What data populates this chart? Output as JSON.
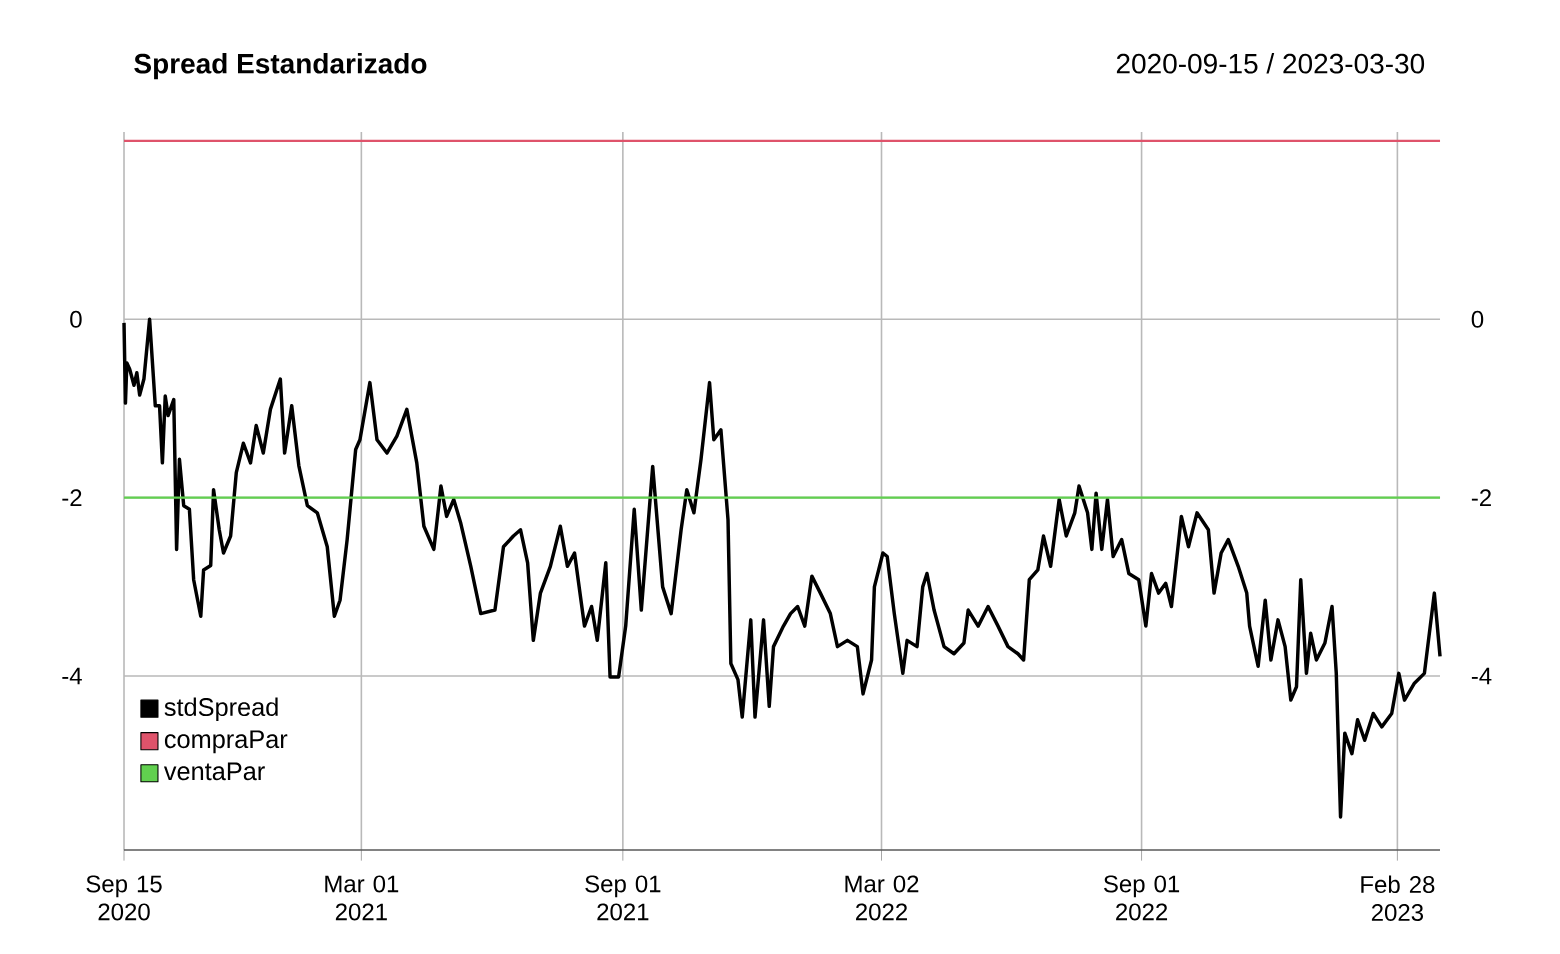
{
  "chart_data": {
    "type": "line",
    "title": "Spread Estandarizado",
    "subtitle": "2020-09-15 / 2023-03-30",
    "xlim": [
      "2020-09-15",
      "2023-03-30"
    ],
    "xticks": [
      {
        "value": "2020-09-15",
        "label": "Sep 15 2020"
      },
      {
        "value": "2021-03-01",
        "label": "Mar 01 2021"
      },
      {
        "value": "2021-09-01",
        "label": "Sep 01 2021"
      },
      {
        "value": "2022-03-02",
        "label": "Mar 02 2022"
      },
      {
        "value": "2022-09-01",
        "label": "Sep 01 2022"
      },
      {
        "value": "2023-02-28",
        "label": "Feb 28 2023"
      }
    ],
    "ylim": [
      -5.95,
      2.1
    ],
    "yticks": [
      -4,
      -2,
      0
    ],
    "y2lim": [
      -5.95,
      2.1
    ],
    "y2ticks": [
      -4,
      -2,
      0
    ],
    "grid": true,
    "legend": "bottom left",
    "marker": "none",
    "line_style": "solid",
    "series": [
      {
        "name": "stdSpread",
        "color": "#000000",
        "x": [
          "2020-09-15",
          "2020-09-16",
          "2020-09-17",
          "2020-09-19",
          "2020-09-22",
          "2020-09-24",
          "2020-09-26",
          "2020-09-29",
          "2020-10-03",
          "2020-10-07",
          "2020-10-10",
          "2020-10-12",
          "2020-10-14",
          "2020-10-16",
          "2020-10-20",
          "2020-10-22",
          "2020-10-24",
          "2020-10-27",
          "2020-10-31",
          "2020-11-03",
          "2020-11-08",
          "2020-11-10",
          "2020-11-15",
          "2020-11-17",
          "2020-11-21",
          "2020-11-24",
          "2020-11-29",
          "2020-12-03",
          "2020-12-08",
          "2020-12-13",
          "2020-12-17",
          "2020-12-22",
          "2020-12-27",
          "2021-01-03",
          "2021-01-06",
          "2021-01-11",
          "2021-01-16",
          "2021-01-22",
          "2021-01-29",
          "2021-02-05",
          "2021-02-10",
          "2021-02-14",
          "2021-02-19",
          "2021-02-25",
          "2021-02-28",
          "2021-03-07",
          "2021-03-12",
          "2021-03-19",
          "2021-03-26",
          "2021-04-02",
          "2021-04-09",
          "2021-04-14",
          "2021-04-21",
          "2021-04-26",
          "2021-04-30",
          "2021-05-05",
          "2021-05-10",
          "2021-05-17",
          "2021-05-24",
          "2021-06-03",
          "2021-06-09",
          "2021-06-16",
          "2021-06-21",
          "2021-06-26",
          "2021-06-30",
          "2021-07-05",
          "2021-07-12",
          "2021-07-19",
          "2021-07-24",
          "2021-07-29",
          "2021-08-05",
          "2021-08-10",
          "2021-08-14",
          "2021-08-20",
          "2021-08-23",
          "2021-08-29",
          "2021-09-03",
          "2021-09-09",
          "2021-09-14",
          "2021-09-22",
          "2021-09-29",
          "2021-10-05",
          "2021-10-12",
          "2021-10-16",
          "2021-10-21",
          "2021-10-26",
          "2021-11-01",
          "2021-11-04",
          "2021-11-09",
          "2021-11-14",
          "2021-11-16",
          "2021-11-21",
          "2021-11-24",
          "2021-11-30",
          "2021-12-03",
          "2021-12-09",
          "2021-12-13",
          "2021-12-16",
          "2021-12-23",
          "2021-12-28",
          "2022-01-02",
          "2022-01-07",
          "2022-01-12",
          "2022-01-18",
          "2022-01-25",
          "2022-01-30",
          "2022-02-06",
          "2022-02-13",
          "2022-02-17",
          "2022-02-23",
          "2022-02-25",
          "2022-03-03",
          "2022-03-06",
          "2022-03-11",
          "2022-03-17",
          "2022-03-20",
          "2022-03-27",
          "2022-03-31",
          "2022-04-03",
          "2022-04-08",
          "2022-04-15",
          "2022-04-22",
          "2022-04-29",
          "2022-05-02",
          "2022-05-09",
          "2022-05-16",
          "2022-05-23",
          "2022-05-30",
          "2022-06-06",
          "2022-06-10",
          "2022-06-14",
          "2022-06-20",
          "2022-06-24",
          "2022-06-29",
          "2022-07-05",
          "2022-07-10",
          "2022-07-16",
          "2022-07-19",
          "2022-07-25",
          "2022-07-28",
          "2022-07-31",
          "2022-08-04",
          "2022-08-08",
          "2022-08-12",
          "2022-08-18",
          "2022-08-23",
          "2022-08-30",
          "2022-09-04",
          "2022-09-08",
          "2022-09-13",
          "2022-09-18",
          "2022-09-22",
          "2022-09-29",
          "2022-10-04",
          "2022-10-10",
          "2022-10-18",
          "2022-10-22",
          "2022-10-27",
          "2022-11-01",
          "2022-11-08",
          "2022-11-14",
          "2022-11-16",
          "2022-11-22",
          "2022-11-27",
          "2022-12-01",
          "2022-12-06",
          "2022-12-11",
          "2022-12-15",
          "2022-12-19",
          "2022-12-22",
          "2022-12-26",
          "2022-12-29",
          "2023-01-02",
          "2023-01-08",
          "2023-01-13",
          "2023-01-16",
          "2023-01-19",
          "2023-01-22",
          "2023-01-27",
          "2023-01-31",
          "2023-02-05",
          "2023-02-11",
          "2023-02-17",
          "2023-02-24",
          "2023-03-01",
          "2023-03-05",
          "2023-03-12",
          "2023-03-19",
          "2023-03-26",
          "2023-03-30"
        ],
        "values": [
          -0.04,
          -0.94,
          -0.49,
          -0.56,
          -0.74,
          -0.6,
          -0.85,
          -0.67,
          0,
          -0.97,
          -0.97,
          -1.61,
          -0.86,
          -1.08,
          -0.9,
          -2.58,
          -1.57,
          -2.09,
          -2.13,
          -2.92,
          -3.33,
          -2.81,
          -2.76,
          -1.91,
          -2.36,
          -2.62,
          -2.43,
          -1.72,
          -1.39,
          -1.61,
          -1.19,
          -1.5,
          -1.01,
          -0.67,
          -1.5,
          -0.97,
          -1.64,
          -2.09,
          -2.17,
          -2.55,
          -3.33,
          -3.15,
          -2.47,
          -1.46,
          -1.35,
          -0.71,
          -1.35,
          -1.5,
          -1.31,
          -1.01,
          -1.61,
          -2.32,
          -2.58,
          -1.87,
          -2.21,
          -2.02,
          -2.29,
          -2.77,
          -3.3,
          -3.26,
          -2.55,
          -2.43,
          -2.36,
          -2.73,
          -3.6,
          -3.07,
          -2.77,
          -2.32,
          -2.77,
          -2.62,
          -3.44,
          -3.22,
          -3.6,
          -2.73,
          -4.01,
          -4.01,
          -3.44,
          -2.13,
          -3.26,
          -1.65,
          -3.0,
          -3.3,
          -2.36,
          -1.91,
          -2.17,
          -1.57,
          -0.71,
          -1.35,
          -1.24,
          -2.25,
          -3.86,
          -4.04,
          -4.46,
          -3.37,
          -4.46,
          -3.37,
          -4.34,
          -3.67,
          -3.44,
          -3.3,
          -3.22,
          -3.44,
          -2.88,
          -3.07,
          -3.3,
          -3.67,
          -3.6,
          -3.67,
          -4.2,
          -3.82,
          -3.0,
          -2.62,
          -2.66,
          -3.3,
          -3.97,
          -3.6,
          -3.67,
          -3.0,
          -2.85,
          -3.26,
          -3.67,
          -3.75,
          -3.63,
          -3.26,
          -3.44,
          -3.22,
          -3.44,
          -3.67,
          -3.75,
          -3.82,
          -2.92,
          -2.81,
          -2.43,
          -2.77,
          -2.02,
          -2.43,
          -2.17,
          -1.87,
          -2.17,
          -2.58,
          -1.95,
          -2.58,
          -2.02,
          -2.66,
          -2.47,
          -2.85,
          -2.92,
          -3.44,
          -2.85,
          -3.07,
          -2.96,
          -3.22,
          -2.21,
          -2.55,
          -2.17,
          -2.36,
          -3.07,
          -2.62,
          -2.47,
          -2.77,
          -3.07,
          -3.44,
          -3.89,
          -3.15,
          -3.82,
          -3.37,
          -3.67,
          -4.27,
          -4.12,
          -2.92,
          -3.97,
          -3.52,
          -3.82,
          -3.63,
          -3.22,
          -3.97,
          -5.58,
          -4.64,
          -4.87,
          -4.49,
          -4.72,
          -4.42,
          -4.57,
          -4.42,
          -3.97,
          -4.27,
          -4.08,
          -3.97,
          -3.07,
          -3.78
        ]
      },
      {
        "name": "compraPar",
        "color": "#df536b",
        "x": [
          "2020-09-15",
          "2023-03-30"
        ],
        "values": [
          2,
          2
        ]
      },
      {
        "name": "ventaPar",
        "color": "#61d04f",
        "x": [
          "2020-09-15",
          "2023-03-30"
        ],
        "values": [
          -2,
          -2
        ]
      }
    ]
  }
}
